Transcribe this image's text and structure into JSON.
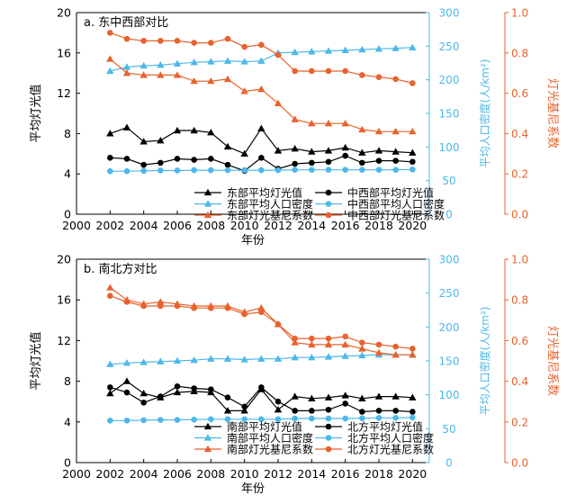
{
  "chart_data": [
    {
      "type": "line",
      "title": "a. 东中西部对比",
      "xlabel": "年份",
      "ylabel_left": "平均灯光值",
      "ylabel_right1": "平均人口密度(人/km²)",
      "ylabel_right2": "灯光基尼系数",
      "xlim": [
        2000,
        2021
      ],
      "ylim_left": [
        0,
        20
      ],
      "ylim_right1": [
        0,
        300
      ],
      "ylim_right2": [
        0,
        1.0
      ],
      "x_ticks": [
        "2000",
        "2002",
        "2004",
        "2006",
        "2008",
        "2010",
        "2012",
        "2014",
        "2016",
        "2018",
        "2020"
      ],
      "y_left_ticks": [
        "0",
        "4",
        "8",
        "12",
        "16",
        "20"
      ],
      "y_right1_ticks": [
        "0",
        "50",
        "100",
        "150",
        "200",
        "250",
        "300"
      ],
      "y_right2_ticks": [
        "0.0",
        "0.2",
        "0.4",
        "0.6",
        "0.8",
        "1.0"
      ],
      "x": [
        2002,
        2003,
        2004,
        2005,
        2006,
        2007,
        2008,
        2009,
        2010,
        2011,
        2012,
        2013,
        2014,
        2015,
        2016,
        2017,
        2018,
        2019,
        2020
      ],
      "series": [
        {
          "name": "东部平均灯光值",
          "axis": "left",
          "color": "#000000",
          "marker": "triangle",
          "values": [
            8.0,
            8.6,
            7.2,
            7.3,
            8.3,
            8.3,
            8.1,
            6.7,
            6.0,
            8.5,
            6.3,
            6.5,
            6.2,
            6.3,
            6.6,
            6.1,
            6.3,
            6.2,
            6.1
          ]
        },
        {
          "name": "中西部平均灯光值",
          "axis": "left",
          "color": "#000000",
          "marker": "circle",
          "values": [
            5.6,
            5.5,
            4.9,
            5.1,
            5.5,
            5.4,
            5.5,
            4.9,
            4.3,
            5.6,
            4.5,
            5.0,
            5.1,
            5.2,
            5.8,
            5.1,
            5.3,
            5.3,
            5.2
          ]
        },
        {
          "name": "东部平均人口密度",
          "axis": "right1",
          "color": "#4db8e8",
          "marker": "triangle",
          "values": [
            213,
            219,
            221,
            222,
            224,
            226,
            227,
            228,
            227,
            228,
            240,
            241,
            242,
            243,
            244,
            245,
            246,
            247,
            248
          ]
        },
        {
          "name": "中西部平均人口密度",
          "axis": "right1",
          "color": "#4db8e8",
          "marker": "circle",
          "values": [
            64,
            64,
            64.5,
            65,
            65,
            65.5,
            65.5,
            65.5,
            65.5,
            65.5,
            65.5,
            66,
            66,
            66,
            66,
            66,
            66,
            66,
            66.5
          ]
        },
        {
          "name": "东部灯光基尼系数",
          "axis": "right2",
          "color": "#e8622e",
          "marker": "triangle",
          "values": [
            0.77,
            0.7,
            0.69,
            0.69,
            0.69,
            0.66,
            0.66,
            0.67,
            0.61,
            0.62,
            0.55,
            0.47,
            0.45,
            0.45,
            0.45,
            0.42,
            0.41,
            0.41,
            0.41
          ]
        },
        {
          "name": "中西部灯光基尼系数",
          "axis": "right2",
          "color": "#e8622e",
          "marker": "circle",
          "values": [
            0.9,
            0.87,
            0.86,
            0.86,
            0.86,
            0.85,
            0.85,
            0.87,
            0.83,
            0.84,
            0.79,
            0.71,
            0.71,
            0.71,
            0.71,
            0.69,
            0.68,
            0.67,
            0.65
          ]
        }
      ],
      "legend": [
        [
          "东部平均灯光值",
          "中西部平均灯光值"
        ],
        [
          "东部平均人口密度",
          "中西部平均人口密度"
        ],
        [
          "东部灯光基尼系数",
          "中西部灯光基尼系数"
        ]
      ]
    },
    {
      "type": "line",
      "title": "b. 南北方对比",
      "xlabel": "年份",
      "ylabel_left": "平均灯光值",
      "ylabel_right1": "平均人口密度(人/km²)",
      "ylabel_right2": "灯光基尼系数",
      "xlim": [
        2000,
        2021
      ],
      "ylim_left": [
        0,
        20
      ],
      "ylim_right1": [
        0,
        300
      ],
      "ylim_right2": [
        0,
        1.0
      ],
      "x_ticks": [
        "2000",
        "2002",
        "2004",
        "2006",
        "2008",
        "2010",
        "2012",
        "2014",
        "2016",
        "2018",
        "2020"
      ],
      "y_left_ticks": [
        "0",
        "4",
        "8",
        "12",
        "16",
        "20"
      ],
      "y_right1_ticks": [
        "0",
        "50",
        "100",
        "150",
        "200",
        "250",
        "300"
      ],
      "y_right2_ticks": [
        "0.0",
        "0.2",
        "0.4",
        "0.6",
        "0.8",
        "1.0"
      ],
      "x": [
        2002,
        2003,
        2004,
        2005,
        2006,
        2007,
        2008,
        2009,
        2010,
        2011,
        2012,
        2013,
        2014,
        2015,
        2016,
        2017,
        2018,
        2019,
        2020
      ],
      "series": [
        {
          "name": "南部平均灯光值",
          "axis": "left",
          "color": "#000000",
          "marker": "triangle",
          "values": [
            6.8,
            8.0,
            6.8,
            6.4,
            6.9,
            7.0,
            6.9,
            5.1,
            5.1,
            7.2,
            5.2,
            6.5,
            6.3,
            6.4,
            6.6,
            6.3,
            6.5,
            6.5,
            6.4
          ]
        },
        {
          "name": "北方平均灯光值",
          "axis": "left",
          "color": "#000000",
          "marker": "circle",
          "values": [
            7.4,
            6.9,
            5.9,
            6.5,
            7.5,
            7.3,
            7.2,
            6.4,
            5.5,
            7.4,
            6.0,
            5.1,
            5.1,
            5.2,
            5.8,
            5.0,
            5.1,
            5.1,
            5.0
          ]
        },
        {
          "name": "南部平均人口密度",
          "axis": "right1",
          "color": "#4db8e8",
          "marker": "triangle",
          "values": [
            145,
            147,
            148,
            149,
            150,
            151,
            153,
            153,
            152,
            153,
            153,
            155,
            155,
            156,
            157,
            158,
            159,
            159,
            159
          ]
        },
        {
          "name": "北方平均人口密度",
          "axis": "right1",
          "color": "#4db8e8",
          "marker": "circle",
          "values": [
            62,
            62,
            62.5,
            63,
            63,
            63.5,
            64,
            64,
            64,
            64,
            64,
            65,
            65,
            65,
            65,
            65.5,
            66,
            66,
            66.5
          ]
        },
        {
          "name": "南部灯光基尼系数",
          "axis": "right2",
          "color": "#e8622e",
          "marker": "triangle",
          "values": [
            0.86,
            0.8,
            0.78,
            0.79,
            0.78,
            0.77,
            0.77,
            0.77,
            0.74,
            0.76,
            0.68,
            0.59,
            0.58,
            0.58,
            0.58,
            0.56,
            0.54,
            0.53,
            0.53
          ]
        },
        {
          "name": "北方灯光基尼系数",
          "axis": "right2",
          "color": "#e8622e",
          "marker": "circle",
          "values": [
            0.82,
            0.79,
            0.77,
            0.77,
            0.77,
            0.76,
            0.76,
            0.76,
            0.73,
            0.74,
            0.68,
            0.61,
            0.61,
            0.61,
            0.62,
            0.59,
            0.58,
            0.57,
            0.56
          ]
        }
      ],
      "legend": [
        [
          "南部平均灯光值",
          "北方平均灯光值"
        ],
        [
          "南部平均人口密度",
          "北方平均人口密度"
        ],
        [
          "南部灯光基尼系数",
          "北方灯光基尼系数"
        ]
      ]
    }
  ]
}
